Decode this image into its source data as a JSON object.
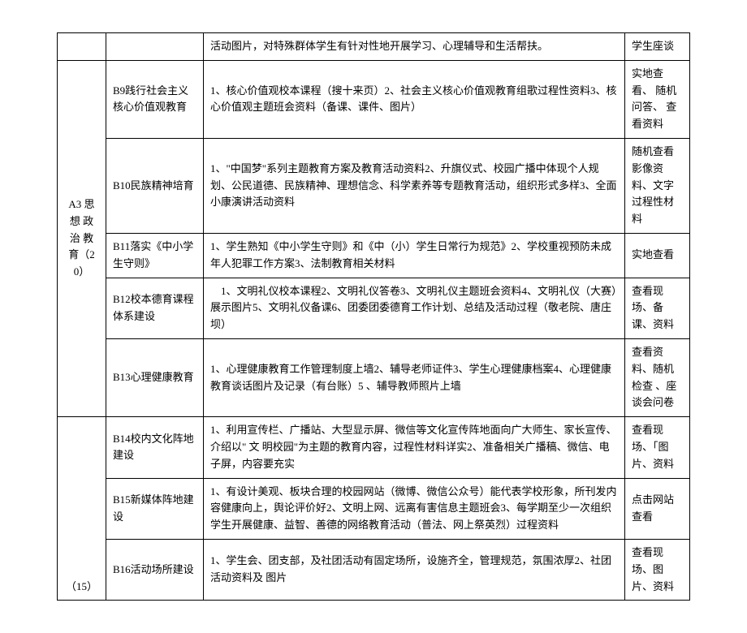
{
  "table": {
    "rows": [
      {
        "a": "",
        "b": "",
        "c": "活动图片，对特殊群体学生有针对性地开展学习、心理辅导和生活帮扶。",
        "d": "学生座谈"
      },
      {
        "a": "A3 思 想 政 治 教 育（20）",
        "a_rowspan": 5,
        "b": "B9践行社会主义核心价值观教育",
        "c": "1、核心价值观校本课程（搜十来页）2、社会主义核心价值观教育组歌过程性资料3、核心价值观主题班会资料（备课、课件、图片）",
        "d": "实地查看、 随机问答、 查看资料"
      },
      {
        "b": "B10民族精神培育",
        "c": "1、\"中国梦\"系列主题教育方案及教育活动资料2、升旗仪式、校园广播中体现个人规划、公民道德、民族精神、理想信念、科学素养等专题教育活动，组织形式多样3、全面小康演讲活动资料",
        "d": "随机查看影像资料、文字过程性材料"
      },
      {
        "b": "B11落实《中小学生守则》",
        "c": "1、学生熟知《中小学生守则》和《中（小）学生日常行为规范》2、学校重视预防未成年人犯罪工作方案3、法制教育相关材料",
        "d": "实地查看"
      },
      {
        "b": "B12校本德育课程体系建设",
        "c": "　1、文明礼仪校本课程2、文明礼仪答卷3、文明礼仪主题班会资料4、文明礼仪（大赛）展示图片5、文明礼仪备课6、团委团委德育工作计划、总结及活动过程（敬老院、唐庄坝）",
        "d": "查看现场、备课、资料"
      },
      {
        "b": "B13心理健康教育",
        "c": "1、心理健康教育工作管理制度上墙2、辅导老师证件3、学生心理健康档案4、心理健康教育谈话图片及记录（有台账）5 、辅导教师照片上墙",
        "d": "查看资料、随机检查 、座谈会问卷"
      },
      {
        "a": "（15）",
        "a_rowspan": 3,
        "a_valign": "bottom",
        "b": "B14校内文化阵地建设",
        "c": "1、利用宣传栏、广播站、大型显示屏、微信等文化宣传阵地面向广大师生、家长宣传、介绍以\" 文 明校园\"为主题的教育内容，过程性材料详实2、准备相关广播稿、微信、电子屏，内容要充实",
        "d": "查看现场、「图片、资料"
      },
      {
        "b": "B15新媒体阵地建设",
        "c": "1、有设计美观、板块合理的校园网站（微博、微信公众号）能代表学校形象，所刊发内容健康向上，舆论评价好2、文明上网、远离有害信息主题班会3、每学期至少一次组织学生开展健康、益智、善德的网络教育活动（普法、网上祭英烈）过程资料",
        "d": "点击网站查看"
      },
      {
        "b": "B16活动场所建设",
        "c": "1、学生会、团支部，及社团活动有固定场所，设施齐全，管理规范，氛围浓厚2、社团活动资料及 图片",
        "d": "查看现场、图片、资料"
      }
    ]
  }
}
